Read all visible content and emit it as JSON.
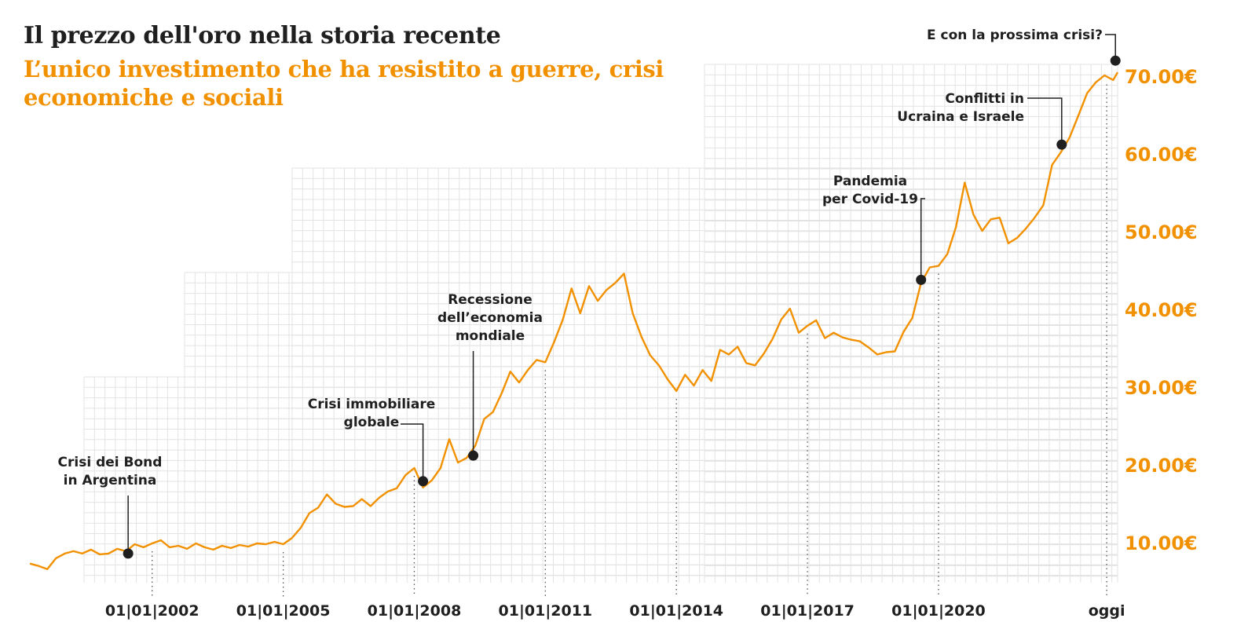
{
  "title": "Il prezzo dell'oro nella storia recente",
  "subtitle": "L’unico investimento che ha resistito a guerre, crisi economiche e sociali",
  "colors": {
    "line": "#f29100",
    "text": "#1f1f1f",
    "grid": "#e3e3e3",
    "marker": "#1f1f1f"
  },
  "chart_data": {
    "type": "line",
    "title": "Il prezzo dell'oro nella storia recente",
    "subtitle": "L’unico investimento che ha resistito a guerre, crisi economiche e sociali",
    "xlabel": "",
    "ylabel": "",
    "x_range": [
      1999.2,
      2024.1
    ],
    "ylim": [
      5,
      75
    ],
    "grid": true,
    "y_axis_side": "right",
    "yticks": [
      {
        "value": 10,
        "label": "10.00€"
      },
      {
        "value": 20,
        "label": "20.00€"
      },
      {
        "value": 30,
        "label": "30.00€"
      },
      {
        "value": 40,
        "label": "40.00€"
      },
      {
        "value": 50,
        "label": "50.00€"
      },
      {
        "value": 60,
        "label": "60.00€"
      },
      {
        "value": 70,
        "label": "70.00€"
      }
    ],
    "xticks": [
      {
        "value": 2002.0,
        "label": "01|01|2002"
      },
      {
        "value": 2005.0,
        "label": "01|01|2005"
      },
      {
        "value": 2008.0,
        "label": "01|01|2008"
      },
      {
        "value": 2011.0,
        "label": "01|01|2011"
      },
      {
        "value": 2014.0,
        "label": "01|01|2014"
      },
      {
        "value": 2017.0,
        "label": "01|01|2017"
      },
      {
        "value": 2020.0,
        "label": "01|01|2020"
      },
      {
        "value": 2023.85,
        "label": "oggi"
      }
    ],
    "series": [
      {
        "x": [
          1999.2,
          1999.4,
          1999.6,
          1999.8,
          2000.0,
          2000.2,
          2000.4,
          2000.6,
          2000.8,
          2001.0,
          2001.2,
          2001.4,
          2001.6,
          2001.8,
          2002.0,
          2002.2,
          2002.4,
          2002.6,
          2002.8,
          2003.0,
          2003.2,
          2003.4,
          2003.6,
          2003.8,
          2004.0,
          2004.2,
          2004.4,
          2004.6,
          2004.8,
          2005.0,
          2005.2,
          2005.4,
          2005.6,
          2005.8,
          2006.0,
          2006.2,
          2006.4,
          2006.6,
          2006.8,
          2007.0,
          2007.2,
          2007.4,
          2007.6,
          2007.8,
          2008.0,
          2008.2,
          2008.4,
          2008.6,
          2008.8,
          2009.0,
          2009.2,
          2009.4,
          2009.6,
          2009.8,
          2010.0,
          2010.2,
          2010.4,
          2010.6,
          2010.8,
          2011.0,
          2011.2,
          2011.4,
          2011.6,
          2011.8,
          2012.0,
          2012.2,
          2012.4,
          2012.6,
          2012.8,
          2013.0,
          2013.2,
          2013.4,
          2013.6,
          2013.8,
          2014.0,
          2014.2,
          2014.4,
          2014.6,
          2014.8,
          2015.0,
          2015.2,
          2015.4,
          2015.6,
          2015.8,
          2016.0,
          2016.2,
          2016.4,
          2016.6,
          2016.8,
          2017.0,
          2017.2,
          2017.4,
          2017.6,
          2017.8,
          2018.0,
          2018.2,
          2018.4,
          2018.6,
          2018.8,
          2019.0,
          2019.2,
          2019.4,
          2019.6,
          2019.8,
          2020.0,
          2020.2,
          2020.4,
          2020.6,
          2020.8,
          2021.0,
          2021.2,
          2021.4,
          2021.6,
          2021.8,
          2022.0,
          2022.2,
          2022.4,
          2022.6,
          2022.8,
          2023.0,
          2023.2,
          2023.4,
          2023.6,
          2023.8,
          2024.0,
          2024.1
        ],
        "y": [
          7.3,
          7.0,
          6.6,
          8.0,
          8.6,
          8.9,
          8.6,
          9.1,
          8.5,
          8.6,
          9.2,
          8.9,
          9.8,
          9.4,
          9.9,
          10.3,
          9.4,
          9.6,
          9.2,
          9.9,
          9.4,
          9.1,
          9.6,
          9.3,
          9.7,
          9.5,
          9.9,
          9.8,
          10.1,
          9.8,
          10.6,
          11.9,
          13.8,
          14.5,
          16.2,
          15.0,
          14.6,
          14.7,
          15.6,
          14.7,
          15.8,
          16.6,
          17.0,
          18.7,
          19.6,
          17.1,
          18.0,
          19.6,
          23.3,
          20.3,
          20.9,
          22.5,
          25.9,
          26.8,
          29.2,
          32.0,
          30.6,
          32.2,
          33.5,
          33.2,
          35.8,
          38.7,
          42.7,
          39.5,
          43.0,
          41.1,
          42.5,
          43.4,
          44.6,
          39.5,
          36.5,
          34.1,
          32.8,
          31.0,
          29.5,
          31.6,
          30.2,
          32.2,
          30.8,
          34.8,
          34.2,
          35.2,
          33.1,
          32.8,
          34.3,
          36.2,
          38.7,
          40.1,
          37.0,
          37.9,
          38.6,
          36.3,
          37.0,
          36.4,
          36.1,
          35.9,
          35.1,
          34.2,
          34.5,
          34.6,
          37.1,
          38.9,
          43.4,
          45.4,
          45.6,
          47.1,
          50.6,
          56.3,
          52.2,
          50.1,
          51.6,
          51.8,
          48.5,
          49.2,
          50.4,
          51.8,
          53.4,
          58.6,
          60.2,
          62.1,
          64.9,
          67.8,
          69.2,
          70.1,
          69.5,
          70.5
        ]
      }
    ],
    "annotations": [
      {
        "label": [
          "Crisi dei Bond",
          "in Argentina"
        ],
        "x": 2001.45,
        "y": 8.6
      },
      {
        "label": [
          "Crisi immobiliare",
          "globale"
        ],
        "x": 2008.2,
        "y": 17.9
      },
      {
        "label": [
          "Recessione",
          "dell’economia",
          "mondiale"
        ],
        "x": 2009.35,
        "y": 21.2
      },
      {
        "label": [
          "Pandemia",
          "per Covid-19"
        ],
        "x": 2019.6,
        "y": 43.8
      },
      {
        "label": [
          "Conflitti in",
          "Ucraina e Israele"
        ],
        "x": 2022.82,
        "y": 61.2
      },
      {
        "label": [
          "E con la prossima crisi?"
        ],
        "x": 2024.05,
        "y": 72.0
      }
    ]
  }
}
